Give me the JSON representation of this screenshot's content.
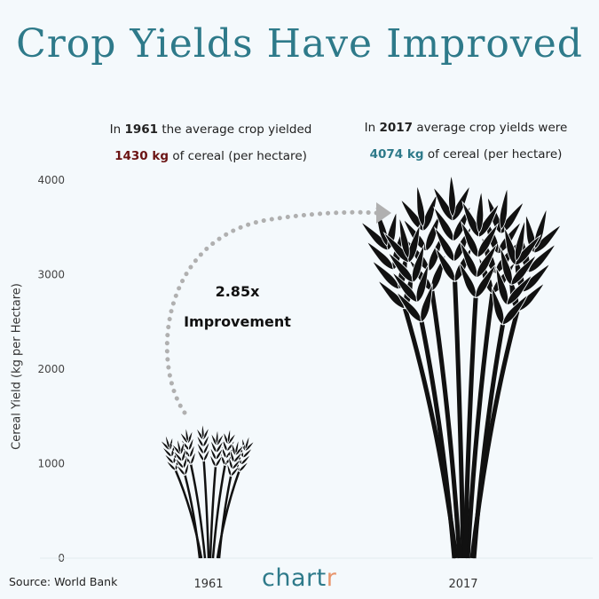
{
  "title": "Crop Yields Have Improved",
  "notes": {
    "left": {
      "prefix": "In ",
      "year": "1961",
      "middle": " the average crop yielded",
      "value": "1430 kg",
      "suffix": " of cereal (per hectare)"
    },
    "right": {
      "prefix": "In ",
      "year": "2017",
      "middle": " average crop yields were",
      "value": "4074 kg",
      "suffix": " of cereal (per hectare)"
    }
  },
  "annotation": {
    "ratio": "2.85x",
    "label": "Improvement"
  },
  "source": "Source: World Bank",
  "brand": {
    "main": "chart",
    "accent": "r"
  },
  "colors": {
    "title": "#2e7a8a",
    "value_1961": "#6b1414",
    "value_2017": "#2e7a8a",
    "brand_accent": "#e8946b",
    "wheat": "#111111",
    "arrow": "#b0b0b0"
  },
  "chart_data": {
    "type": "bar",
    "mark": "wheat-icon",
    "categories": [
      "1961",
      "2017"
    ],
    "values": [
      1430,
      4074
    ],
    "ylabel": "Cereal Yield (kg per Hectare)",
    "ylim": [
      0,
      4000
    ],
    "yticks": [
      0,
      1000,
      2000,
      3000,
      4000
    ],
    "grid": false
  }
}
